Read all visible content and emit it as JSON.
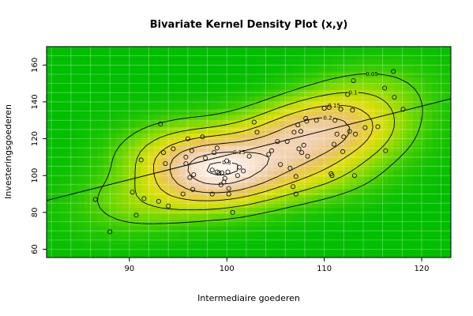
{
  "chart_data": {
    "type": "scatter",
    "title": "Bivariate Kernel Density Plot (x,y)",
    "xlabel": "Intermediaire goederen",
    "ylabel": "Investeringsgoederen",
    "xlim": [
      81.5,
      123
    ],
    "ylim": [
      55.5,
      170
    ],
    "x_ticks": [
      90,
      100,
      110,
      120
    ],
    "y_ticks": [
      60,
      80,
      100,
      120,
      140,
      160
    ],
    "grid": true,
    "background": "kernel density heatmap (green low to white high)",
    "contour_levels": [
      "0.05",
      "0.1",
      "0.15",
      "0.2",
      "0.25",
      "0.3"
    ],
    "regression_line": {
      "intercept": -21.9,
      "slope": 1.33
    },
    "points": [
      {
        "x": 86.5,
        "y": 87
      },
      {
        "x": 88,
        "y": 69.5
      },
      {
        "x": 90.3,
        "y": 91
      },
      {
        "x": 90.7,
        "y": 78.5
      },
      {
        "x": 91.2,
        "y": 108.5
      },
      {
        "x": 91.5,
        "y": 87.5
      },
      {
        "x": 93,
        "y": 86
      },
      {
        "x": 93.2,
        "y": 128
      },
      {
        "x": 93.5,
        "y": 112.5
      },
      {
        "x": 93.7,
        "y": 106.5
      },
      {
        "x": 94,
        "y": 83.5
      },
      {
        "x": 94.5,
        "y": 114.5
      },
      {
        "x": 95.5,
        "y": 90
      },
      {
        "x": 95.8,
        "y": 110
      },
      {
        "x": 95.8,
        "y": 106.5
      },
      {
        "x": 96,
        "y": 120
      },
      {
        "x": 96.2,
        "y": 99
      },
      {
        "x": 96.4,
        "y": 113.5
      },
      {
        "x": 96.5,
        "y": 92.5
      },
      {
        "x": 96.6,
        "y": 100.5
      },
      {
        "x": 97.5,
        "y": 121
      },
      {
        "x": 97.8,
        "y": 109.5
      },
      {
        "x": 98.5,
        "y": 103
      },
      {
        "x": 98.5,
        "y": 90
      },
      {
        "x": 98.7,
        "y": 112.5
      },
      {
        "x": 99,
        "y": 115
      },
      {
        "x": 99,
        "y": 102
      },
      {
        "x": 99.2,
        "y": 101.5
      },
      {
        "x": 99.4,
        "y": 95
      },
      {
        "x": 99.5,
        "y": 101.5
      },
      {
        "x": 99.7,
        "y": 96.5
      },
      {
        "x": 99.8,
        "y": 98.5
      },
      {
        "x": 100,
        "y": 108
      },
      {
        "x": 100.1,
        "y": 102
      },
      {
        "x": 100.2,
        "y": 93
      },
      {
        "x": 100.2,
        "y": 90
      },
      {
        "x": 100.6,
        "y": 80
      },
      {
        "x": 101.1,
        "y": 100
      },
      {
        "x": 101.3,
        "y": 104.5
      },
      {
        "x": 101.7,
        "y": 102.5
      },
      {
        "x": 102.3,
        "y": 110.5
      },
      {
        "x": 102.8,
        "y": 129
      },
      {
        "x": 103.1,
        "y": 123.5
      },
      {
        "x": 104.3,
        "y": 111.5
      },
      {
        "x": 104.6,
        "y": 113.5
      },
      {
        "x": 105.2,
        "y": 118.5
      },
      {
        "x": 105.5,
        "y": 106
      },
      {
        "x": 106.2,
        "y": 118.5
      },
      {
        "x": 106.5,
        "y": 104
      },
      {
        "x": 106.8,
        "y": 94
      },
      {
        "x": 106.9,
        "y": 123.5
      },
      {
        "x": 107.1,
        "y": 99.5
      },
      {
        "x": 107.1,
        "y": 90
      },
      {
        "x": 107.3,
        "y": 127.5
      },
      {
        "x": 107.4,
        "y": 114.5
      },
      {
        "x": 107.6,
        "y": 124
      },
      {
        "x": 107.7,
        "y": 112.5
      },
      {
        "x": 107.9,
        "y": 116.5
      },
      {
        "x": 108.1,
        "y": 131
      },
      {
        "x": 108.2,
        "y": 129.5
      },
      {
        "x": 108.3,
        "y": 110.5
      },
      {
        "x": 109.2,
        "y": 130
      },
      {
        "x": 110,
        "y": 136.5
      },
      {
        "x": 110.5,
        "y": 137
      },
      {
        "x": 110.7,
        "y": 101
      },
      {
        "x": 110.8,
        "y": 100
      },
      {
        "x": 111,
        "y": 117
      },
      {
        "x": 111.1,
        "y": 130
      },
      {
        "x": 111.3,
        "y": 122.5
      },
      {
        "x": 111.7,
        "y": 136
      },
      {
        "x": 111.9,
        "y": 113
      },
      {
        "x": 112,
        "y": 121
      },
      {
        "x": 112.4,
        "y": 144
      },
      {
        "x": 112.6,
        "y": 124
      },
      {
        "x": 112.9,
        "y": 135.5
      },
      {
        "x": 113,
        "y": 151.5
      },
      {
        "x": 113.1,
        "y": 100
      },
      {
        "x": 113.2,
        "y": 122.5
      },
      {
        "x": 114.2,
        "y": 126
      },
      {
        "x": 115.5,
        "y": 126.5
      },
      {
        "x": 116.2,
        "y": 147.5
      },
      {
        "x": 116.3,
        "y": 113.5
      },
      {
        "x": 117.1,
        "y": 156.5
      },
      {
        "x": 117.2,
        "y": 142.5
      },
      {
        "x": 118.1,
        "y": 136
      }
    ]
  }
}
